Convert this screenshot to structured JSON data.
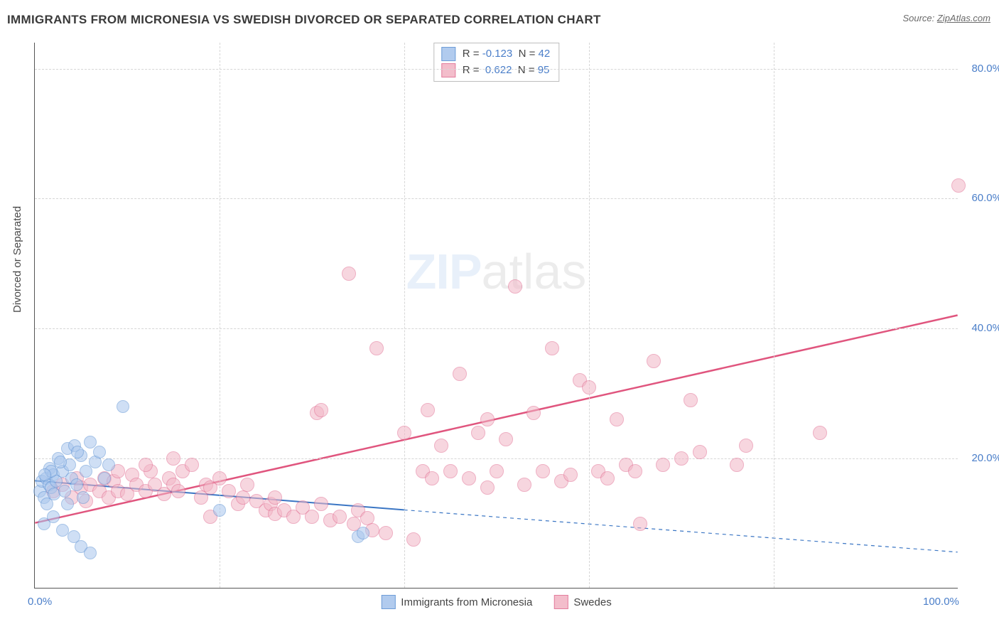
{
  "title": "IMMIGRANTS FROM MICRONESIA VS SWEDISH DIVORCED OR SEPARATED CORRELATION CHART",
  "source_prefix": "Source: ",
  "source_name": "ZipAtlas.com",
  "ylabel": "Divorced or Separated",
  "watermark_zip": "ZIP",
  "watermark_atlas": "atlas",
  "chart": {
    "type": "scatter",
    "xlim": [
      0,
      100
    ],
    "ylim": [
      0,
      84
    ],
    "background_color": "#ffffff",
    "grid_color": "#d6d6d6",
    "grid_dash": "4,4",
    "axis_color": "#555555",
    "y_ticks": [
      {
        "value": 20,
        "label": "20.0%"
      },
      {
        "value": 40,
        "label": "40.0%"
      },
      {
        "value": 60,
        "label": "60.0%"
      },
      {
        "value": 80,
        "label": "80.0%"
      }
    ],
    "x_ticks": [
      {
        "value": 0,
        "label": "0.0%"
      },
      {
        "value": 20,
        "label": ""
      },
      {
        "value": 40,
        "label": ""
      },
      {
        "value": 60,
        "label": ""
      },
      {
        "value": 80,
        "label": ""
      },
      {
        "value": 100,
        "label": "100.0%"
      }
    ],
    "tick_label_color": "#4a7ec9",
    "tick_label_fontsize": 15
  },
  "series": [
    {
      "id": "micronesia",
      "label": "Immigrants from Micronesia",
      "marker_fill": "#a9c6ed",
      "marker_fill_opacity": 0.55,
      "marker_stroke": "#5f93d4",
      "marker_radius_px": 9,
      "trend": {
        "x1": 0,
        "y1": 16.5,
        "x2": 40,
        "y2": 12.0,
        "extend_x": 100,
        "extend_y": 5.5,
        "color": "#3b76c4",
        "width": 2,
        "dash_extension": "5,5"
      },
      "R_label": "R =",
      "R": "-0.123",
      "N_label": "N =",
      "N": "42",
      "points": [
        [
          0.5,
          15
        ],
        [
          0.8,
          16.5
        ],
        [
          1.0,
          14
        ],
        [
          1.2,
          17
        ],
        [
          1.3,
          13
        ],
        [
          1.5,
          16
        ],
        [
          1.6,
          18.5
        ],
        [
          1.8,
          15.5
        ],
        [
          2.0,
          17.5
        ],
        [
          2.1,
          14.5
        ],
        [
          2.3,
          16.5
        ],
        [
          2.5,
          20
        ],
        [
          3.0,
          18
        ],
        [
          3.2,
          15
        ],
        [
          3.5,
          21.5
        ],
        [
          3.8,
          19
        ],
        [
          4.0,
          17
        ],
        [
          4.3,
          22
        ],
        [
          4.5,
          16
        ],
        [
          5.0,
          20.5
        ],
        [
          5.5,
          18
        ],
        [
          6.0,
          22.5
        ],
        [
          6.5,
          19.5
        ],
        [
          7.0,
          21
        ],
        [
          7.5,
          17
        ],
        [
          8.0,
          19
        ],
        [
          9.5,
          28
        ],
        [
          1.0,
          10
        ],
        [
          2.0,
          11
        ],
        [
          3.0,
          9
        ],
        [
          4.2,
          8
        ],
        [
          5.0,
          6.5
        ],
        [
          6.0,
          5.5
        ],
        [
          5.2,
          14
        ],
        [
          3.5,
          13
        ],
        [
          20.0,
          12
        ],
        [
          35.0,
          8
        ],
        [
          35.5,
          8.5
        ],
        [
          1.8,
          18
        ],
        [
          2.8,
          19.5
        ],
        [
          1.1,
          17.5
        ],
        [
          4.6,
          21
        ]
      ]
    },
    {
      "id": "swedes",
      "label": "Swedes",
      "marker_fill": "#f2b6c6",
      "marker_fill_opacity": 0.55,
      "marker_stroke": "#e16f93",
      "marker_radius_px": 10,
      "trend": {
        "x1": 0,
        "y1": 10.0,
        "x2": 100,
        "y2": 42.0,
        "color": "#e0557e",
        "width": 2.5
      },
      "R_label": "R =",
      "R": "0.622",
      "N_label": "N =",
      "N": "95",
      "points": [
        [
          2,
          15
        ],
        [
          3,
          16
        ],
        [
          4,
          14
        ],
        [
          4.5,
          17
        ],
        [
          5,
          15.5
        ],
        [
          5.5,
          13.5
        ],
        [
          6,
          16
        ],
        [
          7,
          15
        ],
        [
          7.5,
          17
        ],
        [
          8,
          14
        ],
        [
          8.5,
          16.5
        ],
        [
          9,
          15
        ],
        [
          10,
          14.5
        ],
        [
          10.5,
          17.5
        ],
        [
          11,
          16
        ],
        [
          12,
          15
        ],
        [
          12.5,
          18
        ],
        [
          13,
          16
        ],
        [
          14,
          14.5
        ],
        [
          14.5,
          17
        ],
        [
          15,
          16
        ],
        [
          15.5,
          15
        ],
        [
          16,
          18
        ],
        [
          17,
          19
        ],
        [
          18,
          14
        ],
        [
          18.5,
          16
        ],
        [
          19,
          15.5
        ],
        [
          20,
          17
        ],
        [
          21,
          15
        ],
        [
          22,
          13
        ],
        [
          22.5,
          14
        ],
        [
          23,
          16
        ],
        [
          24,
          13.5
        ],
        [
          25,
          12
        ],
        [
          25.5,
          13
        ],
        [
          26,
          11.5
        ],
        [
          27,
          12
        ],
        [
          28,
          11
        ],
        [
          29,
          12.5
        ],
        [
          30,
          11
        ],
        [
          30.5,
          27
        ],
        [
          31,
          27.5
        ],
        [
          32,
          10.5
        ],
        [
          33,
          11
        ],
        [
          34,
          48.5
        ],
        [
          34.5,
          10
        ],
        [
          35,
          12
        ],
        [
          36,
          10.8
        ],
        [
          36.5,
          9
        ],
        [
          37,
          37
        ],
        [
          38,
          8.5
        ],
        [
          40,
          24
        ],
        [
          41,
          7.5
        ],
        [
          42,
          18
        ],
        [
          42.5,
          27.5
        ],
        [
          43,
          17
        ],
        [
          45,
          18
        ],
        [
          46,
          33
        ],
        [
          47,
          17
        ],
        [
          48,
          24
        ],
        [
          49,
          15.5
        ],
        [
          50,
          18
        ],
        [
          51,
          23
        ],
        [
          52,
          46.5
        ],
        [
          53,
          16
        ],
        [
          54,
          27
        ],
        [
          55,
          18
        ],
        [
          56,
          37
        ],
        [
          57,
          16.5
        ],
        [
          58,
          17.5
        ],
        [
          59,
          32
        ],
        [
          60,
          31
        ],
        [
          61,
          18
        ],
        [
          62,
          17
        ],
        [
          63,
          26
        ],
        [
          64,
          19
        ],
        [
          65,
          18
        ],
        [
          65.5,
          10
        ],
        [
          67,
          35
        ],
        [
          68,
          19
        ],
        [
          70,
          20
        ],
        [
          71,
          29
        ],
        [
          76,
          19
        ],
        [
          77,
          22
        ],
        [
          85,
          24
        ],
        [
          72,
          21
        ],
        [
          100,
          62
        ],
        [
          44,
          22
        ],
        [
          49,
          26
        ],
        [
          15,
          20
        ],
        [
          19,
          11
        ],
        [
          26,
          14
        ],
        [
          31,
          13
        ],
        [
          12,
          19
        ],
        [
          9,
          18
        ]
      ]
    }
  ]
}
